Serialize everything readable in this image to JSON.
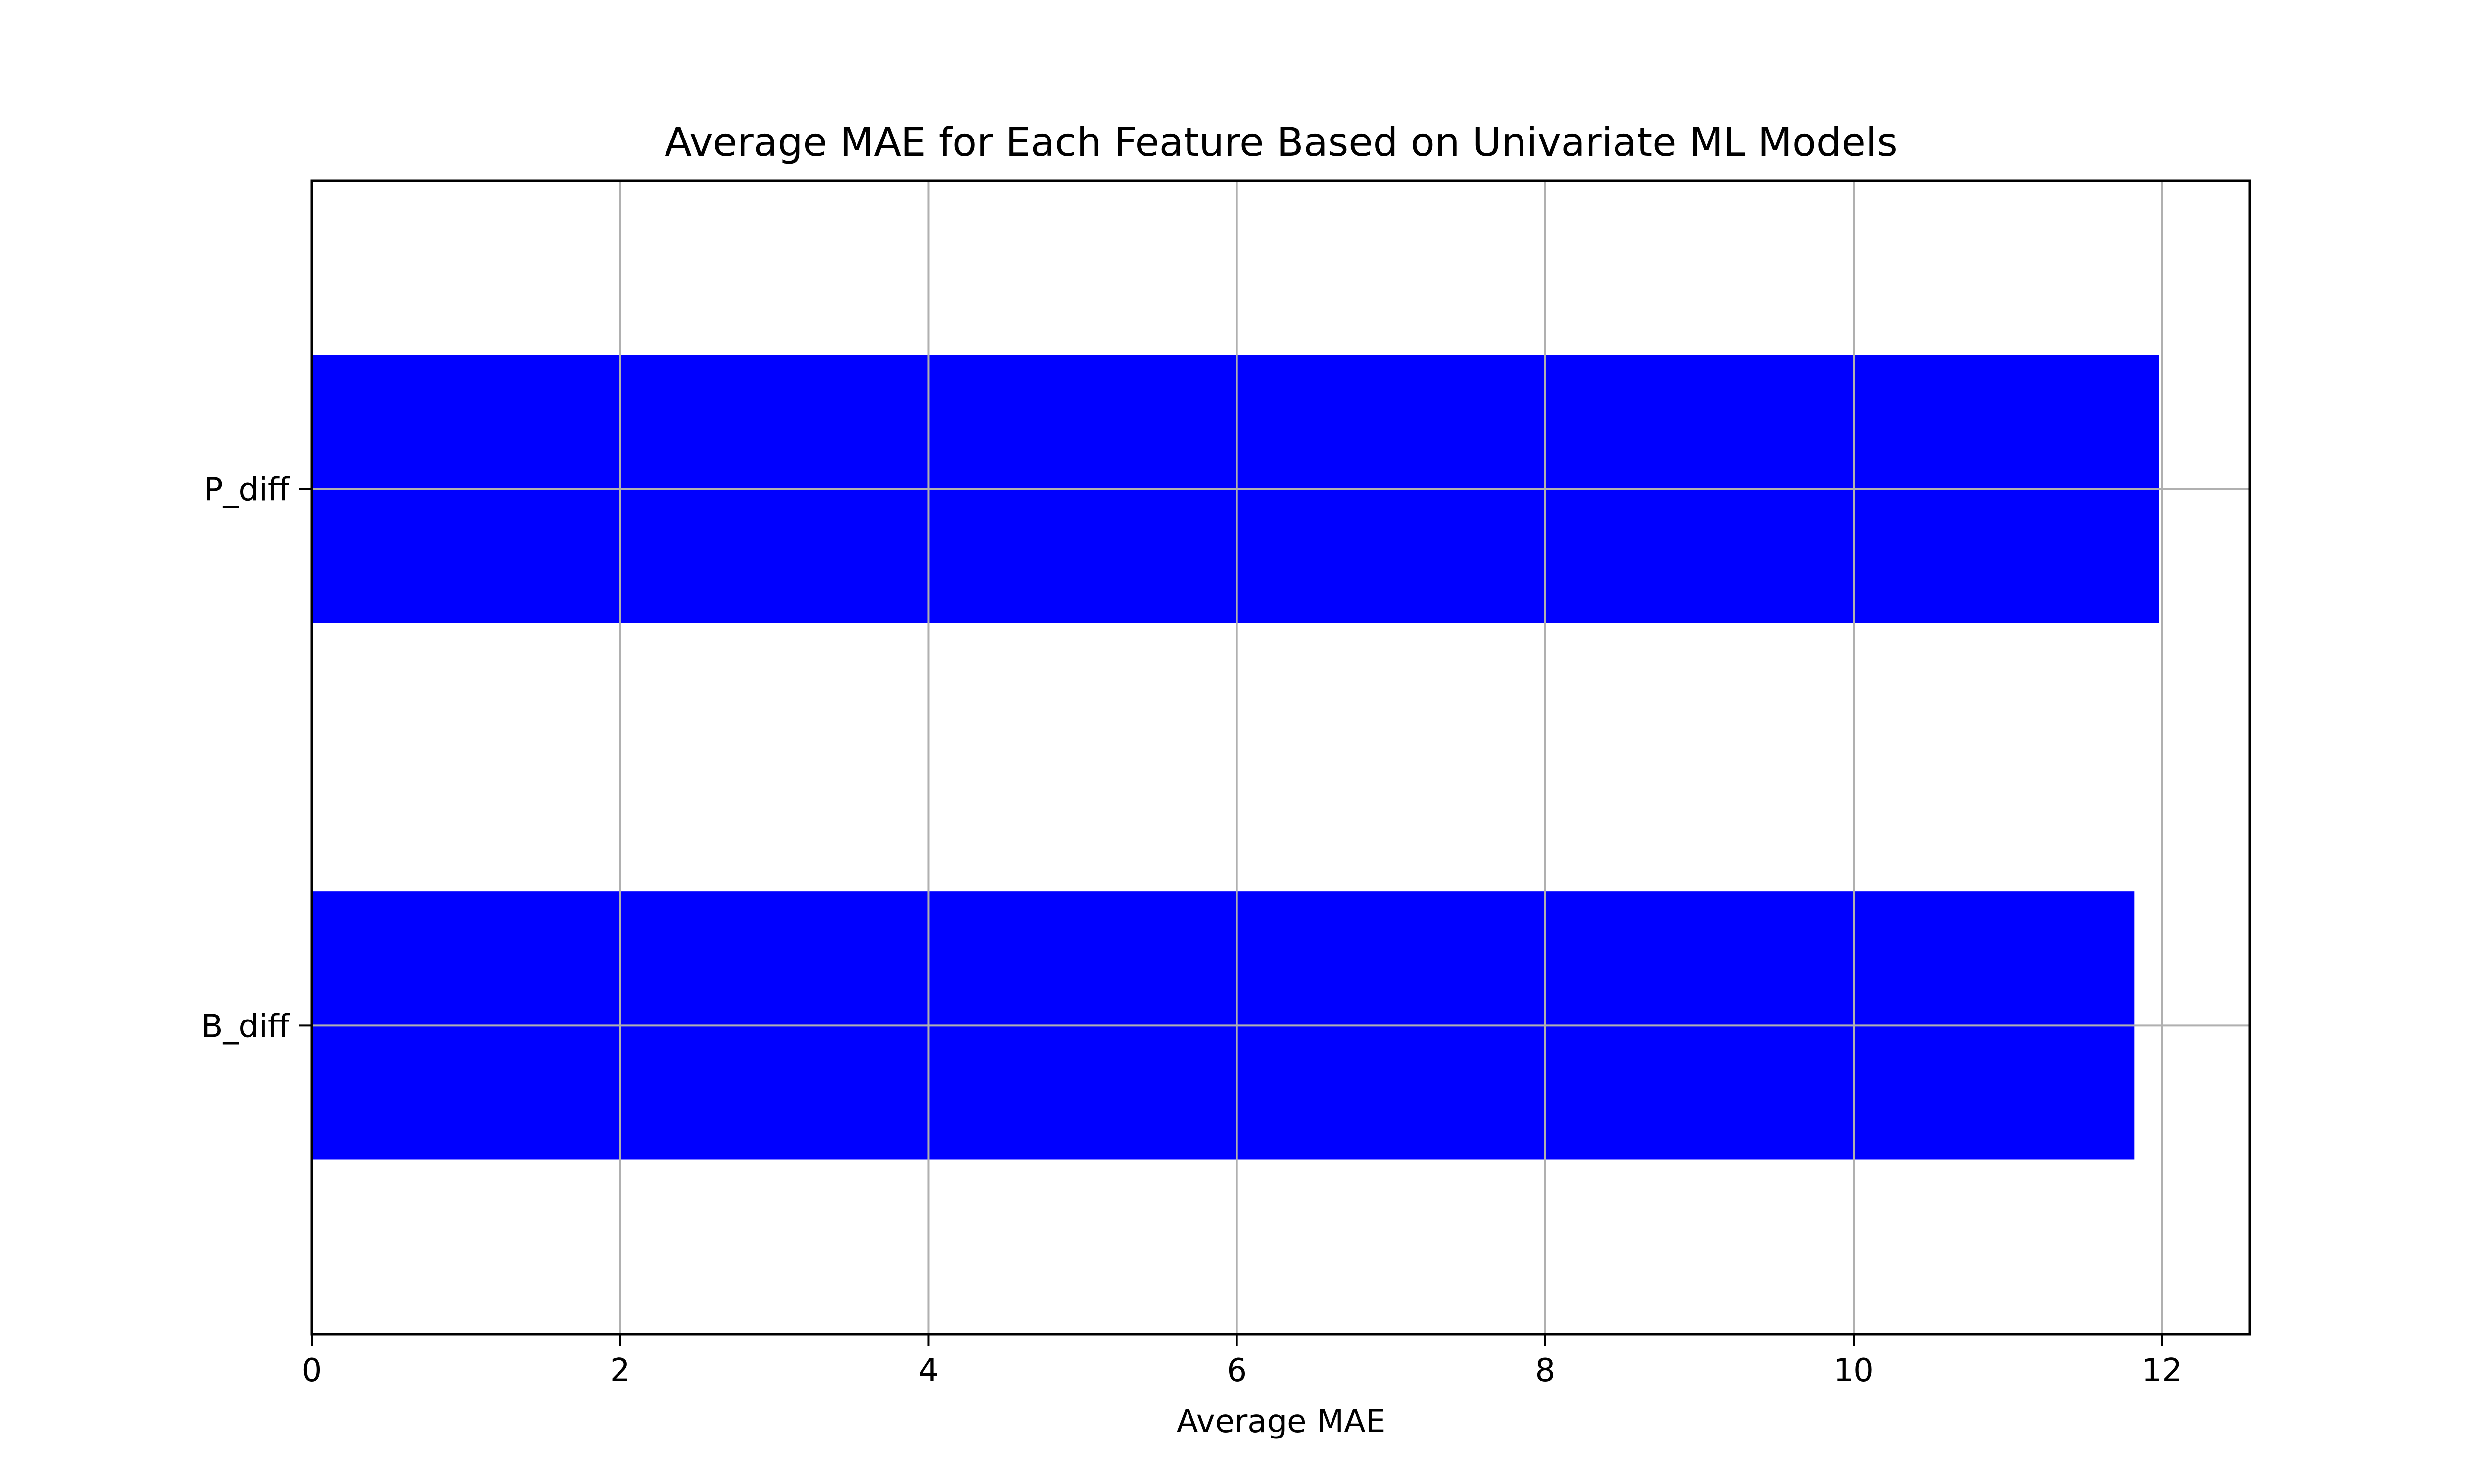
{
  "chart_data": {
    "type": "bar",
    "orientation": "horizontal",
    "title": "Average MAE for Each Feature Based on Univariate ML Models",
    "xlabel": "Average MAE",
    "ylabel": "",
    "categories": [
      "B_diff",
      "P_diff"
    ],
    "values": [
      11.82,
      11.98
    ],
    "xlim": [
      0,
      12.57
    ],
    "x_ticks": [
      0,
      2,
      4,
      6,
      8,
      10,
      12
    ],
    "x_tick_labels": [
      "0",
      "2",
      "4",
      "6",
      "8",
      "10",
      "12"
    ],
    "grid": true,
    "bar_color": "#0000ff",
    "grid_color": "#b0b0b0",
    "axis_color": "#000000"
  }
}
